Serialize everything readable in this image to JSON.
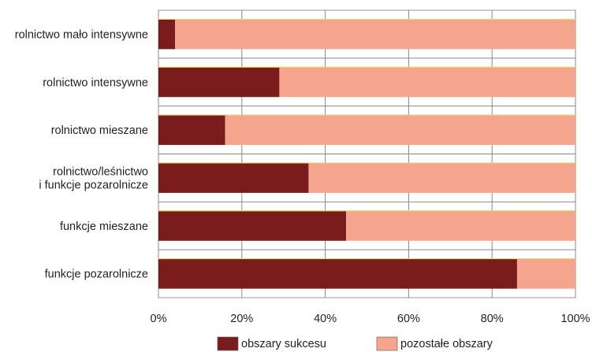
{
  "chart_data": {
    "type": "bar",
    "orientation": "horizontal",
    "stacked": true,
    "percent": true,
    "categories": [
      [
        "rolnictwo mało intensywne"
      ],
      [
        "rolnictwo intensywne"
      ],
      [
        "rolnictwo mieszane"
      ],
      [
        "rolnictwo/leśnictwo",
        "i funkcje pozarolnicze"
      ],
      [
        "funkcje mieszane"
      ],
      [
        "funkcje pozarolnicze"
      ]
    ],
    "series": [
      {
        "name": "obszary sukcesu",
        "color": "#7a1c1c",
        "values": [
          4,
          29,
          16,
          36,
          45,
          86
        ]
      },
      {
        "name": "pozostałe obszary",
        "color": "#f5a58e",
        "values": [
          96,
          71,
          84,
          64,
          55,
          14
        ]
      }
    ],
    "xlim": [
      0,
      100
    ],
    "x_ticks": [
      "0%",
      "20%",
      "40%",
      "60%",
      "80%",
      "100%"
    ],
    "grid": true,
    "legend_position": "bottom"
  }
}
